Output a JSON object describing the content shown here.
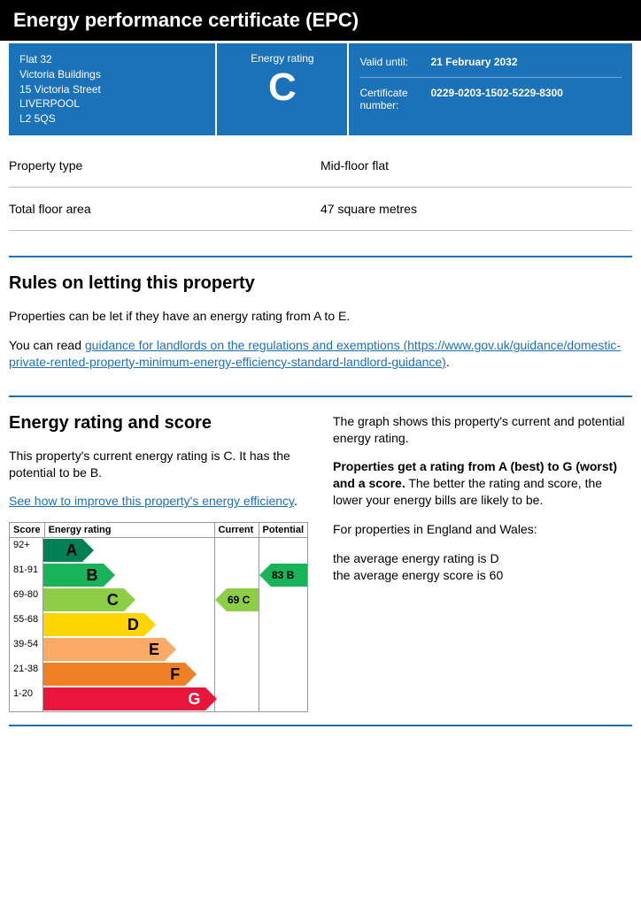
{
  "header": {
    "title": "Energy performance certificate (EPC)"
  },
  "address": {
    "line1": "Flat 32",
    "line2": "Victoria Buildings",
    "line3": "15 Victoria Street",
    "city": "LIVERPOOL",
    "postcode": "L2 5QS"
  },
  "rating_box": {
    "label": "Energy rating",
    "grade": "C"
  },
  "meta": {
    "valid_label": "Valid until:",
    "valid_value": "21 February 2032",
    "cert_label": "Certificate number:",
    "cert_value": "0229-0203-1502-5229-8300"
  },
  "properties": [
    {
      "k": "Property type",
      "v": "Mid-floor flat"
    },
    {
      "k": "Total floor area",
      "v": "47 square metres"
    }
  ],
  "rules": {
    "heading": "Rules on letting this property",
    "p1": "Properties can be let if they have an energy rating from A to E.",
    "p2_prefix": "You can read ",
    "link_text": "guidance for landlords on the regulations and exemptions (https://www.gov.uk/guidance/domestic-private-rented-property-minimum-energy-efficiency-standard-landlord-guidance)",
    "p2_suffix": "."
  },
  "rating_section": {
    "heading": "Energy rating and score",
    "left_p1": "This property's current energy rating is C. It has the potential to be B.",
    "left_link": "See how to improve this property's energy efficiency",
    "right_p1": "The graph shows this property's current and potential energy rating.",
    "right_p2_bold": "Properties get a rating from A (best) to G (worst) and a score.",
    "right_p2_rest": " The better the rating and score, the lower your energy bills are likely to be.",
    "right_p3": "For properties in England and Wales:",
    "right_p4a": "the average energy rating is D",
    "right_p4b": "the average energy score is 60"
  },
  "chart": {
    "headers": {
      "score": "Score",
      "rating": "Energy rating",
      "current": "Current",
      "potential": "Potential"
    },
    "bands": [
      {
        "score": "92+",
        "letter": "A",
        "width_pct": 23,
        "color": "#008054"
      },
      {
        "score": "81-91",
        "letter": "B",
        "width_pct": 35,
        "color": "#19b459"
      },
      {
        "score": "69-80",
        "letter": "C",
        "width_pct": 47,
        "color": "#8dce46"
      },
      {
        "score": "55-68",
        "letter": "D",
        "width_pct": 59,
        "color": "#ffd500"
      },
      {
        "score": "39-54",
        "letter": "E",
        "width_pct": 71,
        "color": "#fcaa65"
      },
      {
        "score": "21-38",
        "letter": "F",
        "width_pct": 83,
        "color": "#ef8023"
      },
      {
        "score": "1-20",
        "letter": "G",
        "width_pct": 95,
        "color": "#e9153b"
      }
    ],
    "current": {
      "band_index": 2,
      "label": "69 C",
      "color": "#8dce46"
    },
    "potential": {
      "band_index": 1,
      "label": "83 B",
      "color": "#19b459"
    }
  }
}
